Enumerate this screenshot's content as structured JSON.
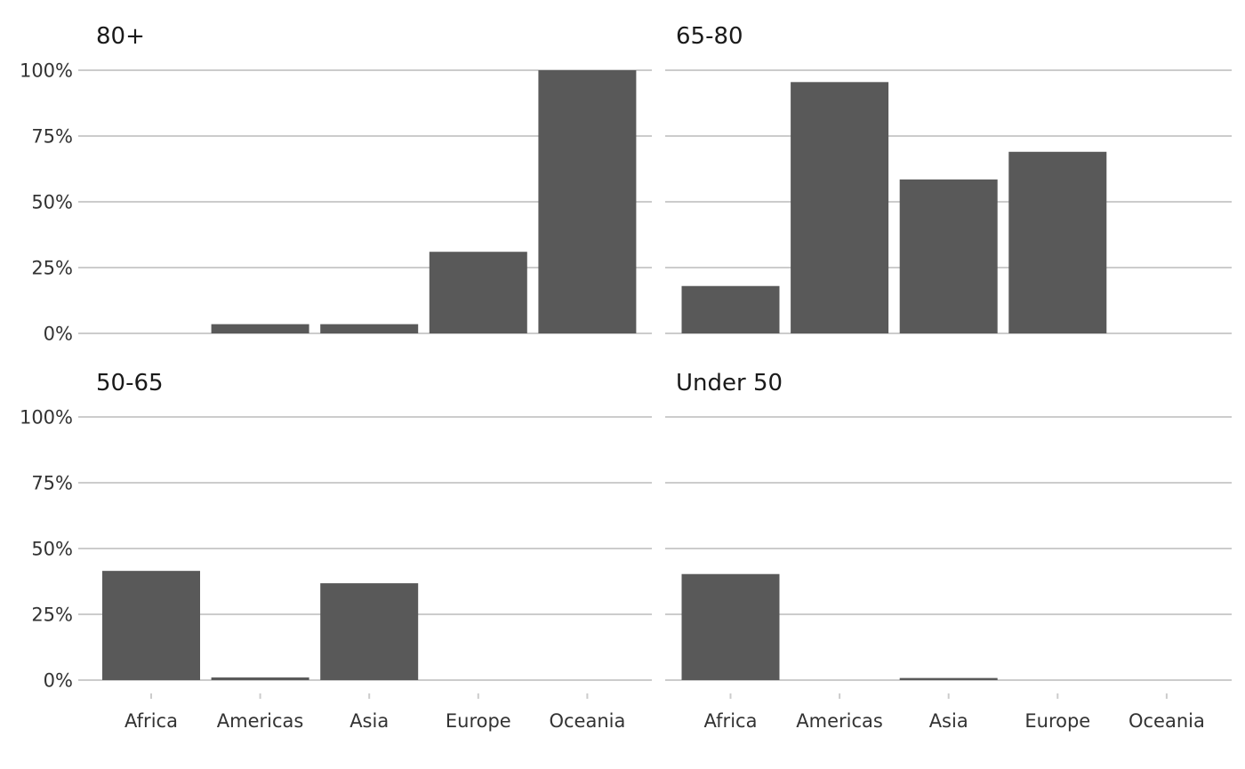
{
  "chart_data": {
    "type": "bar",
    "layout": "facet-grid-2x2",
    "categories": [
      "Africa",
      "Americas",
      "Asia",
      "Europe",
      "Oceania"
    ],
    "ylim": [
      0,
      100
    ],
    "y_ticks": [
      0,
      25,
      50,
      75,
      100
    ],
    "y_tick_labels": [
      "0%",
      "25%",
      "50%",
      "75%",
      "100%"
    ],
    "bar_color": "#595959",
    "grid_color": "#cccccc",
    "grid": "horizontal",
    "facets": [
      {
        "title": "80+",
        "values": [
          0,
          3.5,
          3.5,
          31,
          100
        ]
      },
      {
        "title": "65-80",
        "values": [
          18,
          95.5,
          58.5,
          69,
          0
        ]
      },
      {
        "title": "50-65",
        "values": [
          41.5,
          1,
          36.8,
          0,
          0
        ]
      },
      {
        "title": "Under 50",
        "values": [
          40.3,
          0,
          0.8,
          0,
          0
        ]
      }
    ]
  }
}
